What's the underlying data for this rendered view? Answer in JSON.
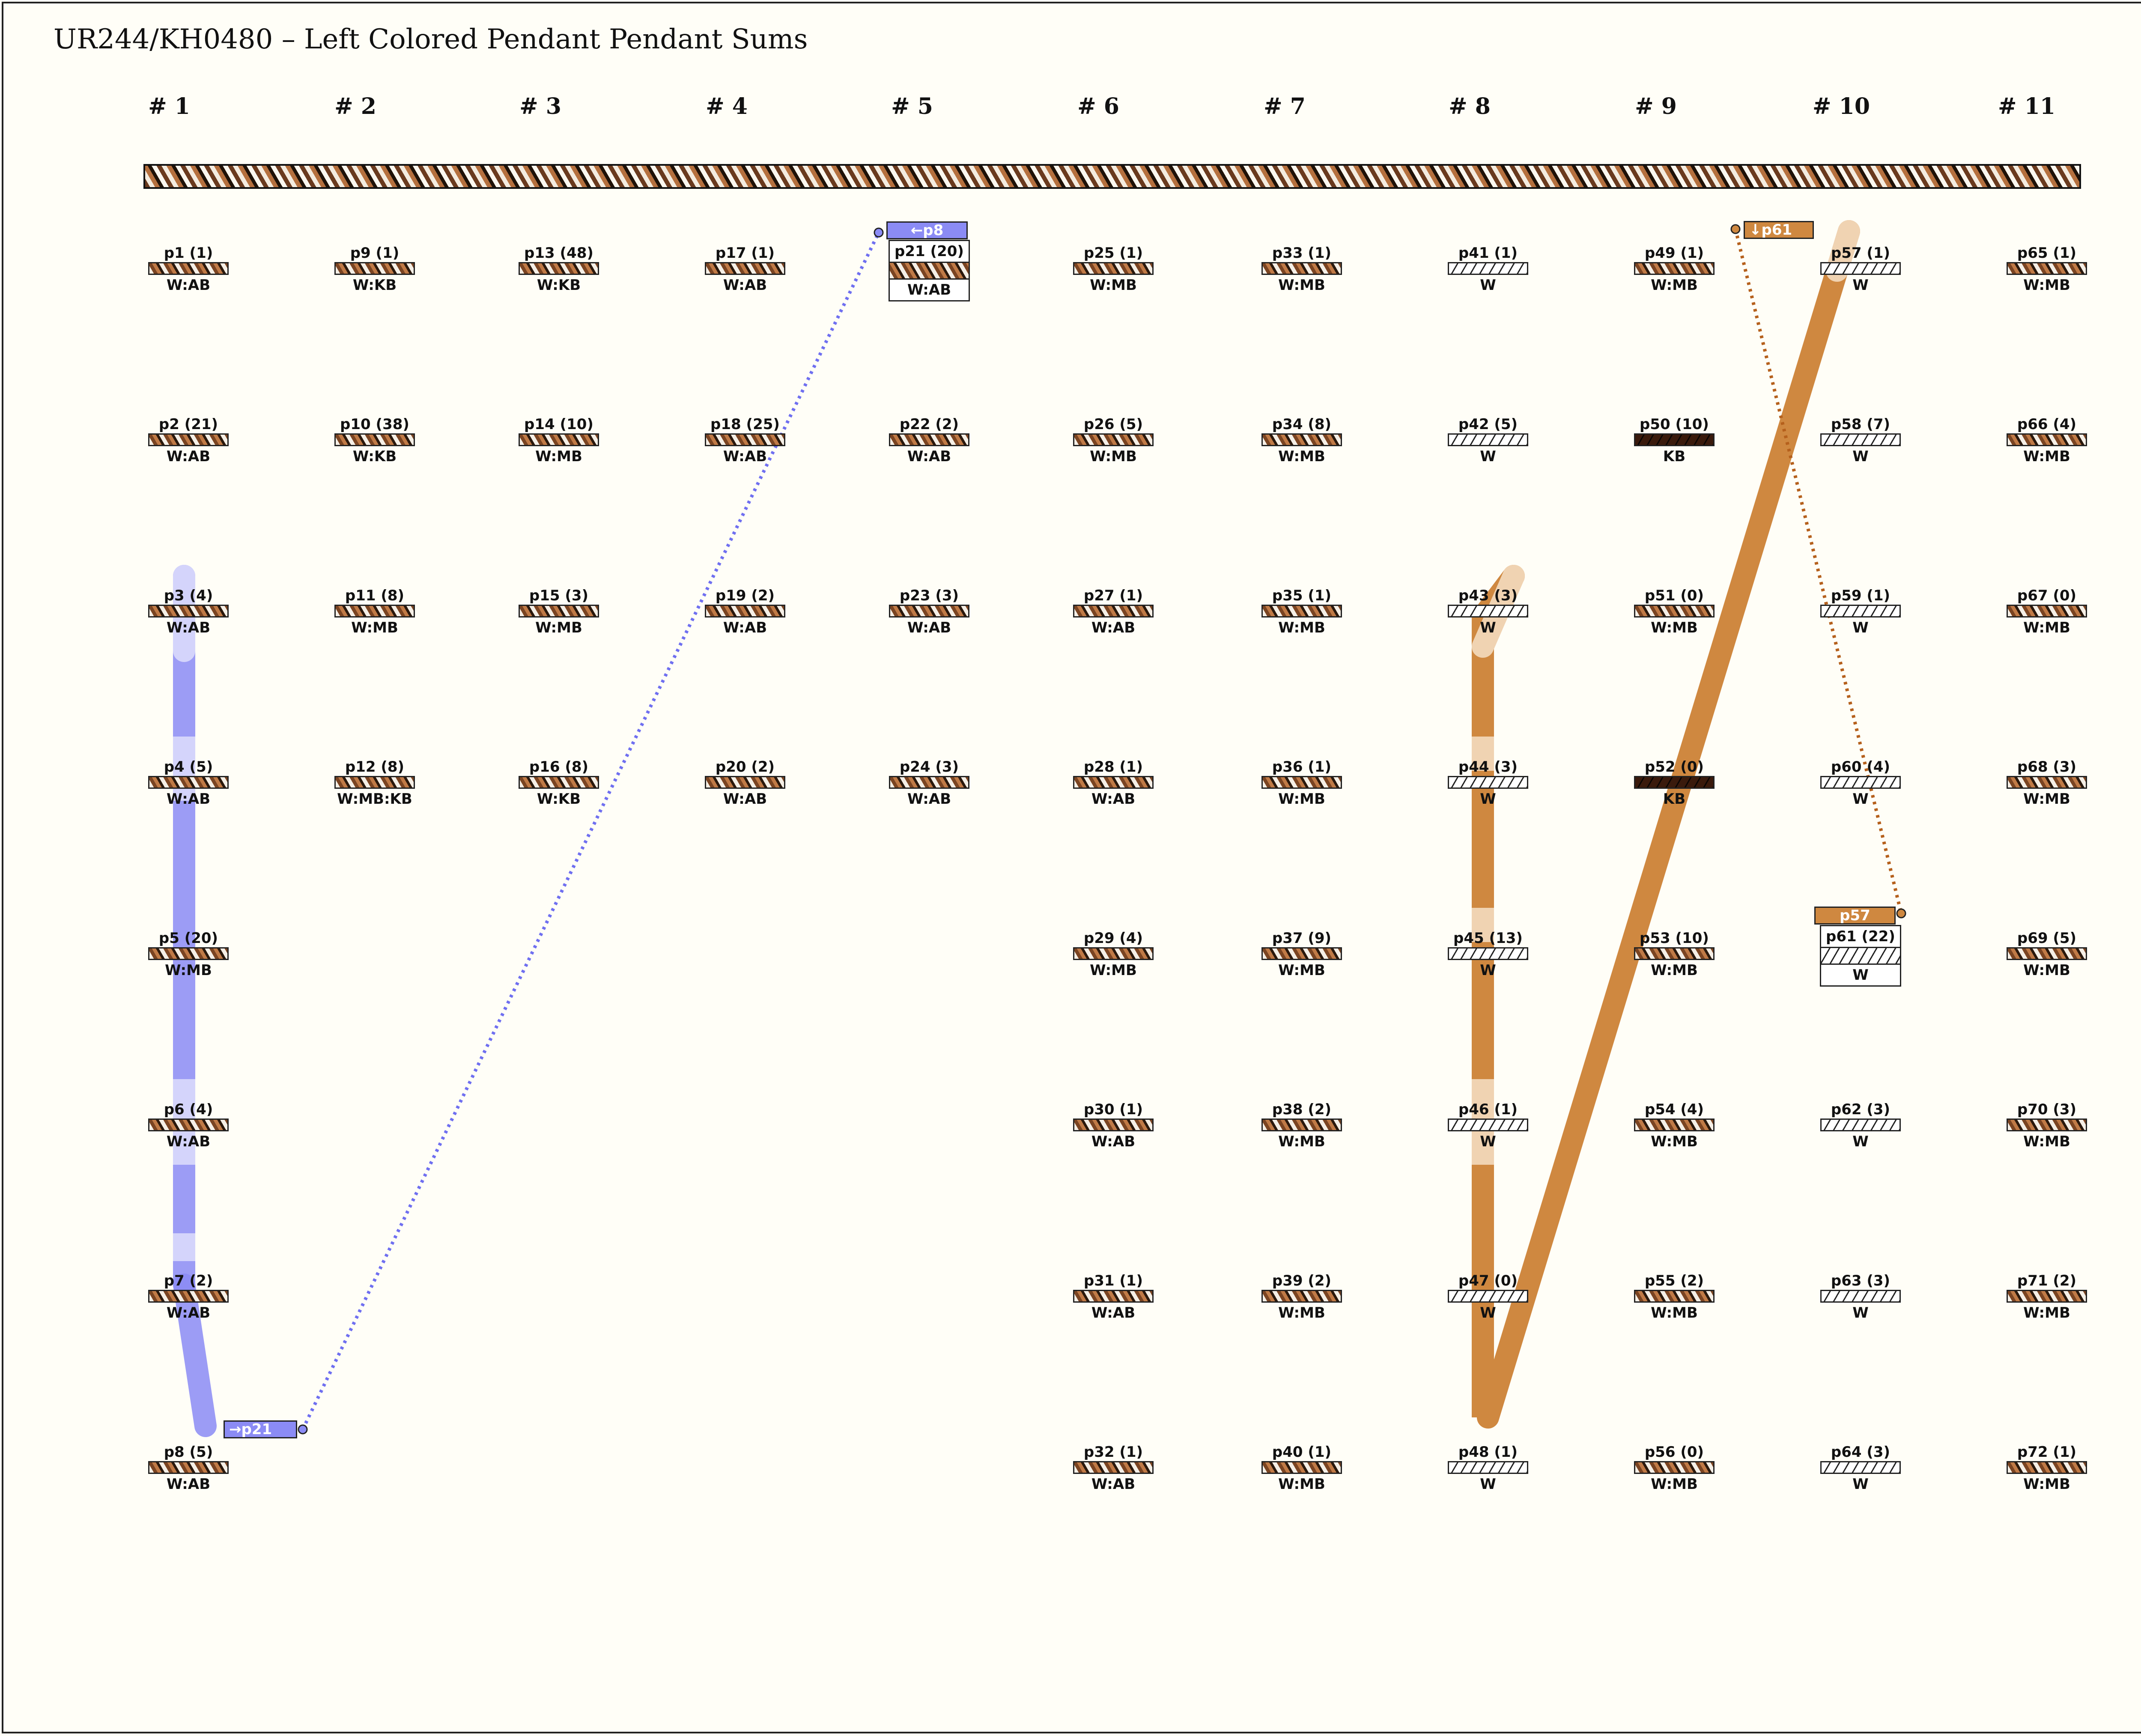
{
  "title": "UR244/KH0480 – Left Colored Pendant Pendant Sums",
  "groups": [
    "# 1",
    "# 2",
    "# 3",
    "# 4",
    "# 5",
    "# 6",
    "# 7",
    "# 8",
    "# 9",
    "# 10",
    "# 11"
  ],
  "colors": {
    "blue": "#8b8bf5",
    "blue_light": "#d4d4fb",
    "brown": "#cf8840",
    "brown_light": "#f0d3b2",
    "background": "#fffef7"
  },
  "pendants": [
    {
      "id": "p1",
      "label": "p1 (1)",
      "color": "W:AB",
      "group": 1,
      "row": 1
    },
    {
      "id": "p2",
      "label": "p2 (21)",
      "color": "W:AB",
      "group": 1,
      "row": 2
    },
    {
      "id": "p3",
      "label": "p3 (4)",
      "color": "W:AB",
      "group": 1,
      "row": 3
    },
    {
      "id": "p4",
      "label": "p4 (5)",
      "color": "W:AB",
      "group": 1,
      "row": 4
    },
    {
      "id": "p5",
      "label": "p5 (20)",
      "color": "W:MB",
      "group": 1,
      "row": 5
    },
    {
      "id": "p6",
      "label": "p6 (4)",
      "color": "W:AB",
      "group": 1,
      "row": 6
    },
    {
      "id": "p7",
      "label": "p7 (2)",
      "color": "W:AB",
      "group": 1,
      "row": 7
    },
    {
      "id": "p8",
      "label": "p8 (5)",
      "color": "W:AB",
      "group": 1,
      "row": 8
    },
    {
      "id": "p9",
      "label": "p9 (1)",
      "color": "W:KB",
      "group": 2,
      "row": 1
    },
    {
      "id": "p10",
      "label": "p10 (38)",
      "color": "W:KB",
      "group": 2,
      "row": 2
    },
    {
      "id": "p11",
      "label": "p11 (8)",
      "color": "W:MB",
      "group": 2,
      "row": 3
    },
    {
      "id": "p12",
      "label": "p12 (8)",
      "color": "W:MB:KB",
      "group": 2,
      "row": 4
    },
    {
      "id": "p13",
      "label": "p13 (48)",
      "color": "W:KB",
      "group": 3,
      "row": 1
    },
    {
      "id": "p14",
      "label": "p14 (10)",
      "color": "W:MB",
      "group": 3,
      "row": 2
    },
    {
      "id": "p15",
      "label": "p15 (3)",
      "color": "W:MB",
      "group": 3,
      "row": 3
    },
    {
      "id": "p16",
      "label": "p16 (8)",
      "color": "W:KB",
      "group": 3,
      "row": 4
    },
    {
      "id": "p17",
      "label": "p17 (1)",
      "color": "W:AB",
      "group": 4,
      "row": 1
    },
    {
      "id": "p18",
      "label": "p18 (25)",
      "color": "W:AB",
      "group": 4,
      "row": 2
    },
    {
      "id": "p19",
      "label": "p19 (2)",
      "color": "W:AB",
      "group": 4,
      "row": 3
    },
    {
      "id": "p20",
      "label": "p20 (2)",
      "color": "W:AB",
      "group": 4,
      "row": 4
    },
    {
      "id": "p21",
      "label": "p21 (20)",
      "color": "W:AB",
      "group": 5,
      "row": 1,
      "boxed": true
    },
    {
      "id": "p22",
      "label": "p22 (2)",
      "color": "W:AB",
      "group": 5,
      "row": 2
    },
    {
      "id": "p23",
      "label": "p23 (3)",
      "color": "W:AB",
      "group": 5,
      "row": 3
    },
    {
      "id": "p24",
      "label": "p24 (3)",
      "color": "W:AB",
      "group": 5,
      "row": 4
    },
    {
      "id": "p25",
      "label": "p25 (1)",
      "color": "W:MB",
      "group": 6,
      "row": 1
    },
    {
      "id": "p26",
      "label": "p26 (5)",
      "color": "W:MB",
      "group": 6,
      "row": 2
    },
    {
      "id": "p27",
      "label": "p27 (1)",
      "color": "W:AB",
      "group": 6,
      "row": 3
    },
    {
      "id": "p28",
      "label": "p28 (1)",
      "color": "W:AB",
      "group": 6,
      "row": 4
    },
    {
      "id": "p29",
      "label": "p29 (4)",
      "color": "W:MB",
      "group": 6,
      "row": 5
    },
    {
      "id": "p30",
      "label": "p30 (1)",
      "color": "W:AB",
      "group": 6,
      "row": 6
    },
    {
      "id": "p31",
      "label": "p31 (1)",
      "color": "W:AB",
      "group": 6,
      "row": 7
    },
    {
      "id": "p32",
      "label": "p32 (1)",
      "color": "W:AB",
      "group": 6,
      "row": 8
    },
    {
      "id": "p33",
      "label": "p33 (1)",
      "color": "W:MB",
      "group": 7,
      "row": 1
    },
    {
      "id": "p34",
      "label": "p34 (8)",
      "color": "W:MB",
      "group": 7,
      "row": 2
    },
    {
      "id": "p35",
      "label": "p35 (1)",
      "color": "W:MB",
      "group": 7,
      "row": 3
    },
    {
      "id": "p36",
      "label": "p36 (1)",
      "color": "W:MB",
      "group": 7,
      "row": 4
    },
    {
      "id": "p37",
      "label": "p37 (9)",
      "color": "W:MB",
      "group": 7,
      "row": 5
    },
    {
      "id": "p38",
      "label": "p38 (2)",
      "color": "W:MB",
      "group": 7,
      "row": 6
    },
    {
      "id": "p39",
      "label": "p39 (2)",
      "color": "W:MB",
      "group": 7,
      "row": 7
    },
    {
      "id": "p40",
      "label": "p40 (1)",
      "color": "W:MB",
      "group": 7,
      "row": 8
    },
    {
      "id": "p41",
      "label": "p41 (1)",
      "color": "W",
      "group": 8,
      "row": 1
    },
    {
      "id": "p42",
      "label": "p42 (5)",
      "color": "W",
      "group": 8,
      "row": 2
    },
    {
      "id": "p43",
      "label": "p43 (3)",
      "color": "W",
      "group": 8,
      "row": 3
    },
    {
      "id": "p44",
      "label": "p44 (3)",
      "color": "W",
      "group": 8,
      "row": 4
    },
    {
      "id": "p45",
      "label": "p45 (13)",
      "color": "W",
      "group": 8,
      "row": 5
    },
    {
      "id": "p46",
      "label": "p46 (1)",
      "color": "W",
      "group": 8,
      "row": 6
    },
    {
      "id": "p47",
      "label": "p47 (0)",
      "color": "W",
      "group": 8,
      "row": 7
    },
    {
      "id": "p48",
      "label": "p48 (1)",
      "color": "W",
      "group": 8,
      "row": 8
    },
    {
      "id": "p49",
      "label": "p49 (1)",
      "color": "W:MB",
      "group": 9,
      "row": 1
    },
    {
      "id": "p50",
      "label": "p50 (10)",
      "color": "KB",
      "group": 9,
      "row": 2
    },
    {
      "id": "p51",
      "label": "p51 (0)",
      "color": "W:MB",
      "group": 9,
      "row": 3
    },
    {
      "id": "p52",
      "label": "p52 (0)",
      "color": "KB",
      "group": 9,
      "row": 4
    },
    {
      "id": "p53",
      "label": "p53 (10)",
      "color": "W:MB",
      "group": 9,
      "row": 5
    },
    {
      "id": "p54",
      "label": "p54 (4)",
      "color": "W:MB",
      "group": 9,
      "row": 6
    },
    {
      "id": "p55",
      "label": "p55 (2)",
      "color": "W:MB",
      "group": 9,
      "row": 7
    },
    {
      "id": "p56",
      "label": "p56 (0)",
      "color": "W:MB",
      "group": 9,
      "row": 8
    },
    {
      "id": "p57",
      "label": "p57 (1)",
      "color": "W",
      "group": 10,
      "row": 1
    },
    {
      "id": "p58",
      "label": "p58 (7)",
      "color": "W",
      "group": 10,
      "row": 2
    },
    {
      "id": "p59",
      "label": "p59 (1)",
      "color": "W",
      "group": 10,
      "row": 3
    },
    {
      "id": "p60",
      "label": "p60 (4)",
      "color": "W",
      "group": 10,
      "row": 4
    },
    {
      "id": "p61",
      "label": "p61 (22)",
      "color": "W",
      "group": 10,
      "row": 5,
      "boxed": true
    },
    {
      "id": "p62",
      "label": "p62 (3)",
      "color": "W",
      "group": 10,
      "row": 6
    },
    {
      "id": "p63",
      "label": "p63 (3)",
      "color": "W",
      "group": 10,
      "row": 7
    },
    {
      "id": "p64",
      "label": "p64 (3)",
      "color": "W",
      "group": 10,
      "row": 8
    },
    {
      "id": "p65",
      "label": "p65 (1)",
      "color": "W:MB",
      "group": 11,
      "row": 1
    },
    {
      "id": "p66",
      "label": "p66 (4)",
      "color": "W:MB",
      "group": 11,
      "row": 2
    },
    {
      "id": "p67",
      "label": "p67 (0)",
      "color": "W:MB",
      "group": 11,
      "row": 3
    },
    {
      "id": "p68",
      "label": "p68 (3)",
      "color": "W:MB",
      "group": 11,
      "row": 4
    },
    {
      "id": "p69",
      "label": "p69 (5)",
      "color": "W:MB",
      "group": 11,
      "row": 5
    },
    {
      "id": "p70",
      "label": "p70 (3)",
      "color": "W:MB",
      "group": 11,
      "row": 6
    },
    {
      "id": "p71",
      "label": "p71 (2)",
      "color": "W:MB",
      "group": 11,
      "row": 7
    },
    {
      "id": "p72",
      "label": "p72 (1)",
      "color": "W:MB",
      "group": 11,
      "row": 8
    }
  ],
  "tags": {
    "to_p21": "→p21",
    "from_p8": "←p8",
    "down_p61": "↓p61",
    "p57": "p57"
  }
}
